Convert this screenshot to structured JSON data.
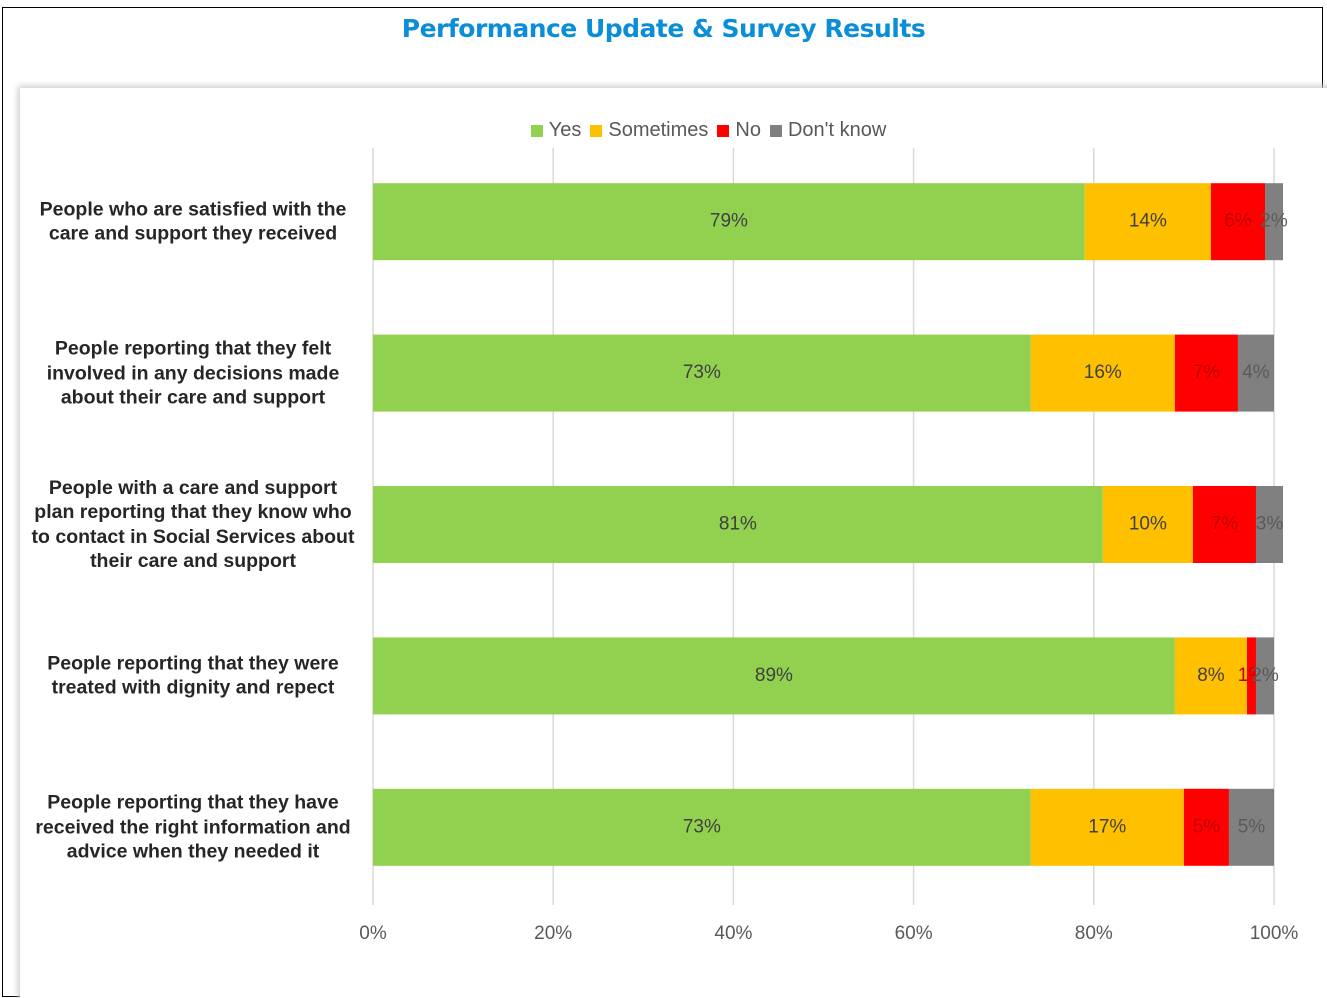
{
  "chart_data": {
    "type": "stacked_barh",
    "title": "Performance Update & Survey Results",
    "categories": [
      "People who are satisfied with the care and support they received",
      "People reporting that they felt involved in any decisions made about their care and support",
      "People with a care and support plan reporting that they know who to contact in Social Services about their care and support",
      "People reporting that they were treated with dignity and repect",
      "People reporting that they have received the right information and advice when they needed it"
    ],
    "series": [
      {
        "name": "Yes",
        "color": "#92d050",
        "values": [
          79,
          73,
          81,
          89,
          73
        ],
        "value_labels": [
          "79%",
          "73%",
          "81%",
          "89%",
          "73%"
        ]
      },
      {
        "name": "Sometimes",
        "color": "#ffc000",
        "values": [
          14,
          16,
          10,
          8,
          17
        ],
        "value_labels": [
          "14%",
          "16%",
          "10%",
          "8%",
          "17%"
        ]
      },
      {
        "name": "No",
        "color": "#ff0000",
        "values": [
          6,
          7,
          7,
          1,
          5
        ],
        "value_labels": [
          "6%",
          "7%",
          "7%",
          "1%",
          "5%"
        ]
      },
      {
        "name": "Don't know",
        "color": "#808080",
        "values": [
          2,
          4,
          3,
          2,
          5
        ],
        "value_labels": [
          "2%",
          "4%",
          "3%",
          "2%",
          "5%"
        ]
      }
    ],
    "xlim": [
      0,
      100
    ],
    "xticks": [
      {
        "value": 0,
        "label": "0%"
      },
      {
        "value": 20,
        "label": "20%"
      },
      {
        "value": 40,
        "label": "40%"
      },
      {
        "value": 60,
        "label": "60%"
      },
      {
        "value": 80,
        "label": "80%"
      },
      {
        "value": 100,
        "label": "100%"
      }
    ],
    "grid": true,
    "legend": "top"
  }
}
